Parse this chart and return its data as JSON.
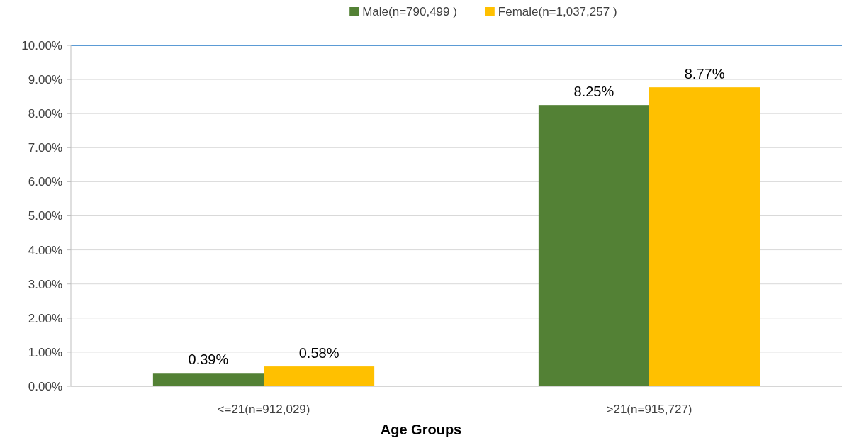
{
  "chart_data": {
    "type": "bar",
    "xlabel": "Age Groups",
    "categories": [
      "<=21(n=912,029)",
      ">21(n=915,727)"
    ],
    "series": [
      {
        "name": "Male(n=790,499 )",
        "color": "#538135",
        "values": [
          0.39,
          8.25
        ],
        "value_labels": [
          "0.39%",
          "8.25%"
        ]
      },
      {
        "name": "Female(n=1,037,257 )",
        "color": "#ffc000",
        "values": [
          0.58,
          8.77
        ],
        "value_labels": [
          "0.58%",
          "8.77%"
        ]
      }
    ],
    "ylim": [
      0,
      10
    ],
    "yticks": [
      {
        "value": 0,
        "label": "0.00%"
      },
      {
        "value": 1,
        "label": "1.00%"
      },
      {
        "value": 2,
        "label": "2.00%"
      },
      {
        "value": 3,
        "label": "3.00%"
      },
      {
        "value": 4,
        "label": "4.00%"
      },
      {
        "value": 5,
        "label": "5.00%"
      },
      {
        "value": 6,
        "label": "6.00%"
      },
      {
        "value": 7,
        "label": "7.00%"
      },
      {
        "value": 8,
        "label": "8.00%"
      },
      {
        "value": 9,
        "label": "9.00%"
      },
      {
        "value": 10,
        "label": "10.00%"
      }
    ],
    "grid": "y",
    "legend": "top"
  }
}
